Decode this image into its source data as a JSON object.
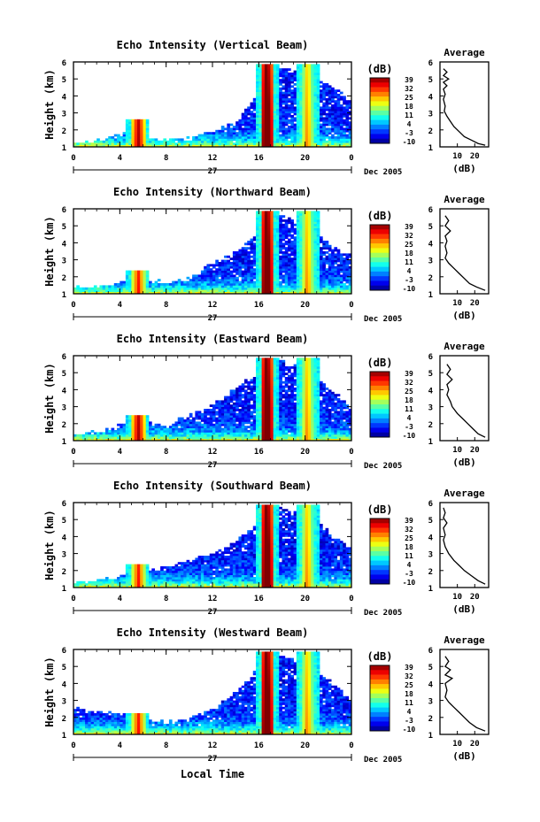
{
  "figure": {
    "x_axis_title": "Local Time",
    "date_label": "27",
    "month_label": "Dec 2005"
  },
  "chart_data": [
    {
      "type": "heatmap",
      "title": "Echo Intensity (Vertical Beam)",
      "ylabel": "Height (km)",
      "xlabel": "Local Time",
      "xlim": [
        0,
        24
      ],
      "ylim": [
        1,
        6
      ],
      "xticks": [
        "0",
        "4",
        "8",
        "12",
        "16",
        "20",
        "0"
      ],
      "yticks": [
        "1",
        "2",
        "3",
        "4",
        "5",
        "6"
      ],
      "colorbar": {
        "unit": "(dB)",
        "ticks": [
          "39",
          "32",
          "25",
          "18",
          "11",
          "4",
          "-3",
          "-10"
        ],
        "range": [
          -10,
          39
        ]
      },
      "events": [
        {
          "x": 5.6,
          "top": 2.6,
          "strength": 1.0
        },
        {
          "x": 16.7,
          "top": 5.9,
          "strength": 1.2
        },
        {
          "x": 20.2,
          "top": 5.9,
          "strength": 0.8
        }
      ],
      "cloud_top": [
        [
          0,
          1.3
        ],
        [
          3,
          1.7
        ],
        [
          5,
          2.0
        ],
        [
          8,
          1.5
        ],
        [
          10,
          1.6
        ],
        [
          12,
          2.0
        ],
        [
          14,
          2.5
        ],
        [
          15.5,
          3.8
        ],
        [
          16.5,
          5.2
        ],
        [
          17.5,
          5.9
        ],
        [
          19,
          5.6
        ],
        [
          21,
          5.4
        ],
        [
          22.5,
          4.6
        ],
        [
          24,
          3.8
        ]
      ],
      "profile": {
        "title": "Average",
        "xlabel": "(dB)",
        "xticks": [
          "10",
          "20"
        ],
        "xlim": [
          0,
          28
        ],
        "ylim": [
          1,
          6
        ],
        "points": [
          [
            2,
            5.6
          ],
          [
            4,
            5.4
          ],
          [
            2,
            5.2
          ],
          [
            5,
            5.0
          ],
          [
            2,
            4.8
          ],
          [
            4,
            4.6
          ],
          [
            2,
            4.4
          ],
          [
            3,
            4.1
          ],
          [
            2,
            3.8
          ],
          [
            3,
            3.4
          ],
          [
            2.5,
            3.1
          ],
          [
            4,
            2.8
          ],
          [
            6,
            2.5
          ],
          [
            8,
            2.2
          ],
          [
            11,
            1.9
          ],
          [
            14,
            1.6
          ],
          [
            18,
            1.4
          ],
          [
            22,
            1.2
          ],
          [
            26,
            1.1
          ]
        ]
      }
    },
    {
      "type": "heatmap",
      "title": "Echo Intensity (Northward Beam)",
      "ylabel": "Height (km)",
      "xlabel": "Local Time",
      "xlim": [
        0,
        24
      ],
      "ylim": [
        1,
        6
      ],
      "xticks": [
        "0",
        "4",
        "8",
        "12",
        "16",
        "20",
        "0"
      ],
      "yticks": [
        "1",
        "2",
        "3",
        "4",
        "5",
        "6"
      ],
      "colorbar": {
        "unit": "(dB)",
        "ticks": [
          "39",
          "32",
          "25",
          "18",
          "11",
          "4",
          "-3",
          "-10"
        ],
        "range": [
          -10,
          39
        ]
      },
      "events": [
        {
          "x": 5.6,
          "top": 2.4,
          "strength": 0.9
        },
        {
          "x": 16.7,
          "top": 5.9,
          "strength": 1.2
        },
        {
          "x": 20.2,
          "top": 5.9,
          "strength": 0.8
        }
      ],
      "cloud_top": [
        [
          0,
          1.5
        ],
        [
          3,
          1.6
        ],
        [
          5,
          1.9
        ],
        [
          8,
          1.8
        ],
        [
          10,
          2.0
        ],
        [
          12,
          3.0
        ],
        [
          14,
          3.5
        ],
        [
          15.5,
          4.5
        ],
        [
          16.5,
          5.4
        ],
        [
          17.5,
          5.9
        ],
        [
          19,
          5.5
        ],
        [
          21,
          4.8
        ],
        [
          22.5,
          3.8
        ],
        [
          24,
          3.5
        ]
      ],
      "profile": {
        "title": "Average",
        "xlabel": "(dB)",
        "xticks": [
          "10",
          "20"
        ],
        "xlim": [
          0,
          28
        ],
        "ylim": [
          1,
          6
        ],
        "points": [
          [
            3,
            5.6
          ],
          [
            5,
            5.3
          ],
          [
            3,
            5.0
          ],
          [
            6,
            4.7
          ],
          [
            3,
            4.4
          ],
          [
            4,
            4.1
          ],
          [
            3,
            3.8
          ],
          [
            4,
            3.4
          ],
          [
            3,
            3.1
          ],
          [
            5,
            2.8
          ],
          [
            8,
            2.5
          ],
          [
            11,
            2.2
          ],
          [
            14,
            1.9
          ],
          [
            17,
            1.6
          ],
          [
            21,
            1.4
          ],
          [
            26,
            1.2
          ]
        ]
      }
    },
    {
      "type": "heatmap",
      "title": "Echo Intensity (Eastward Beam)",
      "ylabel": "Height (km)",
      "xlabel": "Local Time",
      "xlim": [
        0,
        24
      ],
      "ylim": [
        1,
        6
      ],
      "xticks": [
        "0",
        "4",
        "8",
        "12",
        "16",
        "20",
        "0"
      ],
      "yticks": [
        "1",
        "2",
        "3",
        "4",
        "5",
        "6"
      ],
      "colorbar": {
        "unit": "(dB)",
        "ticks": [
          "39",
          "32",
          "25",
          "18",
          "11",
          "4",
          "-3",
          "-10"
        ],
        "range": [
          -10,
          39
        ]
      },
      "events": [
        {
          "x": 5.6,
          "top": 2.5,
          "strength": 1.0
        },
        {
          "x": 16.7,
          "top": 5.9,
          "strength": 1.2
        },
        {
          "x": 20.2,
          "top": 5.9,
          "strength": 0.8
        }
      ],
      "cloud_top": [
        [
          0,
          1.5
        ],
        [
          3,
          1.7
        ],
        [
          5,
          2.4
        ],
        [
          8,
          2.0
        ],
        [
          10,
          2.6
        ],
        [
          12,
          3.2
        ],
        [
          14,
          4.2
        ],
        [
          15.5,
          5.0
        ],
        [
          16.5,
          5.5
        ],
        [
          17.5,
          5.9
        ],
        [
          19,
          5.5
        ],
        [
          21,
          4.8
        ],
        [
          22.5,
          4.0
        ],
        [
          24,
          3.0
        ]
      ],
      "profile": {
        "title": "Average",
        "xlabel": "(dB)",
        "xticks": [
          "10",
          "20"
        ],
        "xlim": [
          0,
          28
        ],
        "ylim": [
          1,
          6
        ],
        "points": [
          [
            4,
            5.5
          ],
          [
            6,
            5.2
          ],
          [
            4,
            4.9
          ],
          [
            7,
            4.6
          ],
          [
            4,
            4.3
          ],
          [
            5,
            4.0
          ],
          [
            4,
            3.7
          ],
          [
            6,
            3.3
          ],
          [
            7,
            3.0
          ],
          [
            10,
            2.6
          ],
          [
            13,
            2.3
          ],
          [
            16,
            2.0
          ],
          [
            19,
            1.7
          ],
          [
            22,
            1.4
          ],
          [
            26,
            1.2
          ]
        ]
      }
    },
    {
      "type": "heatmap",
      "title": "Echo Intensity (Southward Beam)",
      "ylabel": "Height (km)",
      "xlabel": "Local Time",
      "xlim": [
        0,
        24
      ],
      "ylim": [
        1,
        6
      ],
      "xticks": [
        "0",
        "4",
        "8",
        "12",
        "16",
        "20",
        "0"
      ],
      "yticks": [
        "1",
        "2",
        "3",
        "4",
        "5",
        "6"
      ],
      "colorbar": {
        "unit": "(dB)",
        "ticks": [
          "39",
          "32",
          "25",
          "18",
          "11",
          "4",
          "-3",
          "-10"
        ],
        "range": [
          -10,
          39
        ]
      },
      "events": [
        {
          "x": 5.6,
          "top": 2.4,
          "strength": 0.9
        },
        {
          "x": 16.7,
          "top": 5.9,
          "strength": 1.2
        },
        {
          "x": 20.2,
          "top": 5.9,
          "strength": 0.8
        }
      ],
      "cloud_top": [
        [
          0,
          1.4
        ],
        [
          3,
          1.6
        ],
        [
          5,
          2.0
        ],
        [
          8,
          2.4
        ],
        [
          10,
          2.7
        ],
        [
          12,
          3.2
        ],
        [
          14,
          3.8
        ],
        [
          15.5,
          4.7
        ],
        [
          16.5,
          5.4
        ],
        [
          17.5,
          5.9
        ],
        [
          19,
          5.6
        ],
        [
          21,
          5.0
        ],
        [
          22.5,
          4.2
        ],
        [
          24,
          3.4
        ]
      ],
      "profile": {
        "title": "Average",
        "xlabel": "(dB)",
        "xticks": [
          "10",
          "20"
        ],
        "xlim": [
          0,
          28
        ],
        "ylim": [
          1,
          6
        ],
        "points": [
          [
            2,
            5.7
          ],
          [
            3,
            5.4
          ],
          [
            2,
            5.1
          ],
          [
            4,
            4.8
          ],
          [
            2,
            4.5
          ],
          [
            3,
            4.1
          ],
          [
            2,
            3.8
          ],
          [
            3,
            3.4
          ],
          [
            5,
            3.0
          ],
          [
            8,
            2.6
          ],
          [
            11,
            2.3
          ],
          [
            14,
            2.0
          ],
          [
            18,
            1.7
          ],
          [
            22,
            1.4
          ],
          [
            26,
            1.2
          ]
        ]
      }
    },
    {
      "type": "heatmap",
      "title": "Echo Intensity (Westward Beam)",
      "ylabel": "Height (km)",
      "xlabel": "Local Time",
      "xlim": [
        0,
        24
      ],
      "ylim": [
        1,
        6
      ],
      "xticks": [
        "0",
        "4",
        "8",
        "12",
        "16",
        "20",
        "0"
      ],
      "yticks": [
        "1",
        "2",
        "3",
        "4",
        "5",
        "6"
      ],
      "colorbar": {
        "unit": "(dB)",
        "ticks": [
          "39",
          "32",
          "25",
          "18",
          "11",
          "4",
          "-3",
          "-10"
        ],
        "range": [
          -10,
          39
        ]
      },
      "events": [
        {
          "x": 5.6,
          "top": 2.3,
          "strength": 0.9
        },
        {
          "x": 16.7,
          "top": 5.9,
          "strength": 1.2
        },
        {
          "x": 20.2,
          "top": 5.9,
          "strength": 0.8
        }
      ],
      "cloud_top": [
        [
          0,
          2.6
        ],
        [
          3,
          2.4
        ],
        [
          5,
          2.2
        ],
        [
          8,
          1.8
        ],
        [
          10,
          2.0
        ],
        [
          12,
          2.6
        ],
        [
          14,
          3.6
        ],
        [
          15.5,
          4.6
        ],
        [
          16.5,
          5.4
        ],
        [
          17.5,
          5.9
        ],
        [
          19,
          5.6
        ],
        [
          21,
          5.0
        ],
        [
          22.5,
          4.0
        ],
        [
          24,
          3.2
        ]
      ],
      "profile": {
        "title": "Average",
        "xlabel": "(dB)",
        "xticks": [
          "10",
          "20"
        ],
        "xlim": [
          0,
          28
        ],
        "ylim": [
          1,
          6
        ],
        "points": [
          [
            3,
            5.6
          ],
          [
            5,
            5.3
          ],
          [
            3,
            5.0
          ],
          [
            6,
            4.8
          ],
          [
            3,
            4.5
          ],
          [
            7,
            4.3
          ],
          [
            3,
            4.0
          ],
          [
            4,
            3.6
          ],
          [
            3,
            3.2
          ],
          [
            5,
            2.9
          ],
          [
            8,
            2.6
          ],
          [
            11,
            2.3
          ],
          [
            14,
            2.0
          ],
          [
            17,
            1.7
          ],
          [
            21,
            1.4
          ],
          [
            26,
            1.2
          ]
        ]
      }
    }
  ]
}
